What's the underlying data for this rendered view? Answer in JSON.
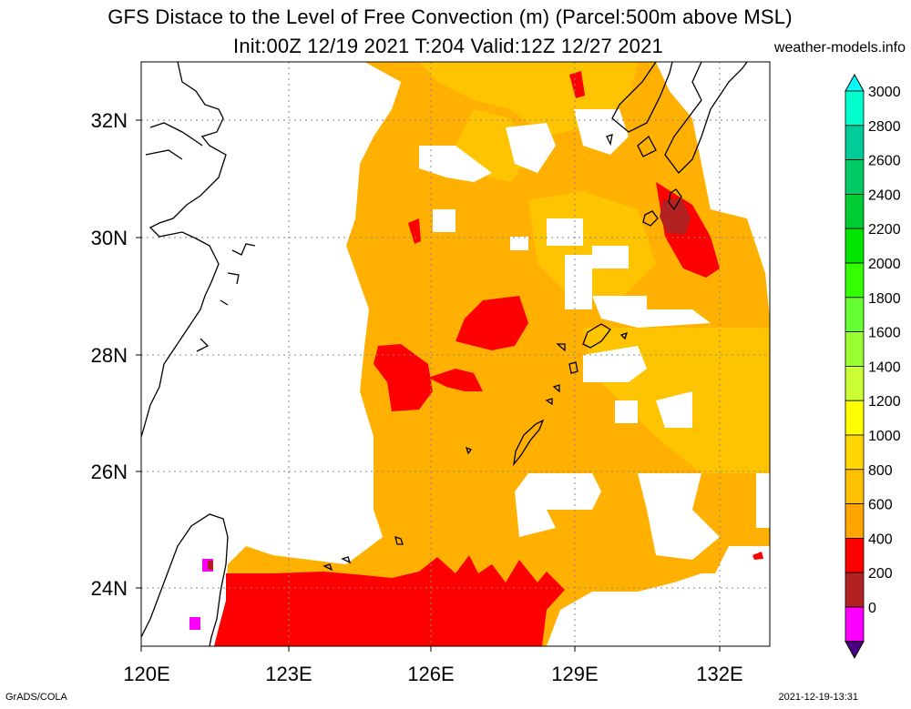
{
  "header": {
    "title_line1": "GFS Distace to the Level of Free Convection (m) (Parcel:500m above MSL)",
    "title_line2": "Init:00Z 12/19 2021 T:204 Valid:12Z 12/27 2021",
    "site": "weather-models.info"
  },
  "footer": {
    "left": "GrADS/COLA",
    "right": "2021-12-19-13:31"
  },
  "map": {
    "lon_labels": [
      "120E",
      "123E",
      "126E",
      "129E",
      "132E"
    ],
    "lat_labels": [
      "32N",
      "30N",
      "28N",
      "26N",
      "24N"
    ],
    "colors": {
      "c0": "#4b0082",
      "c200": "#ff00ff",
      "c400": "#b22222",
      "c600": "#ff0000",
      "c800": "#ffa500",
      "c1000": "#ffc000",
      "c1200": "#ffd700",
      "c1400": "#ffff00",
      "c1600": "#ccff33",
      "c1800": "#99ff33",
      "c2000": "#66ff33",
      "c2200": "#33ff00",
      "c2400": "#00e600",
      "c2600": "#00cc33",
      "c2800": "#00cc66",
      "c3000": "#00ffcc",
      "top": "#00ffff"
    }
  },
  "colorbar": {
    "labels": [
      "3000",
      "2800",
      "2600",
      "2400",
      "2200",
      "2000",
      "1800",
      "1600",
      "1400",
      "1200",
      "1000",
      "800",
      "600",
      "400",
      "200",
      "0"
    ],
    "colors": [
      "#00ffcc",
      "#00cc99",
      "#00cc66",
      "#00cc33",
      "#00e600",
      "#33ff00",
      "#66ff33",
      "#99ff33",
      "#ccff33",
      "#ffff00",
      "#ffd700",
      "#ffc000",
      "#ffa500",
      "#ff0000",
      "#b22222",
      "#ff00ff",
      "#4b0082"
    ]
  }
}
